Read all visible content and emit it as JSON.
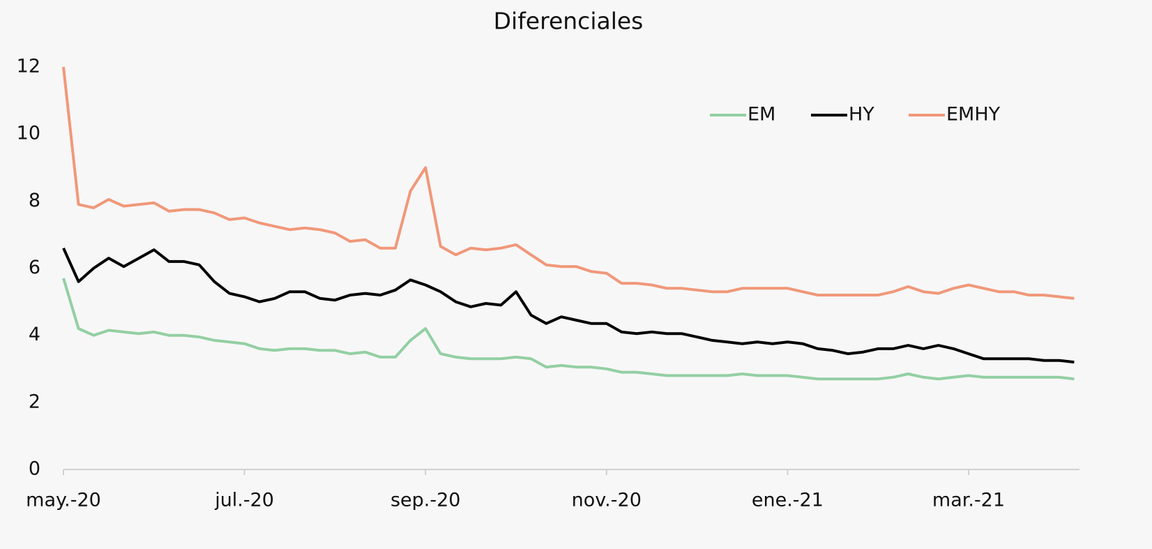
{
  "chart_data": {
    "type": "line",
    "title": "Diferenciales",
    "categories": [
      "may.-20",
      null,
      null,
      null,
      null,
      null,
      null,
      null,
      null,
      null,
      null,
      null,
      "jul.-20",
      null,
      null,
      null,
      null,
      null,
      null,
      null,
      null,
      null,
      null,
      null,
      "sep.-20",
      null,
      null,
      null,
      null,
      null,
      null,
      null,
      null,
      null,
      null,
      null,
      "nov.-20",
      null,
      null,
      null,
      null,
      null,
      null,
      null,
      null,
      null,
      null,
      null,
      "ene.-21",
      null,
      null,
      null,
      null,
      null,
      null,
      null,
      null,
      null,
      null,
      null,
      "mar.-21",
      null,
      null,
      null,
      null,
      null,
      null,
      null
    ],
    "series": [
      {
        "name": "EM",
        "color": "#93cfa3",
        "values": [
          5.7,
          4.2,
          4.0,
          4.15,
          4.1,
          4.05,
          4.1,
          4.0,
          4.0,
          3.95,
          3.85,
          3.8,
          3.75,
          3.6,
          3.55,
          3.6,
          3.6,
          3.55,
          3.55,
          3.45,
          3.5,
          3.35,
          3.35,
          3.85,
          4.2,
          3.45,
          3.35,
          3.3,
          3.3,
          3.3,
          3.35,
          3.3,
          3.05,
          3.1,
          3.05,
          3.05,
          3.0,
          2.9,
          2.9,
          2.85,
          2.8,
          2.8,
          2.8,
          2.8,
          2.8,
          2.85,
          2.8,
          2.8,
          2.8,
          2.75,
          2.7,
          2.7,
          2.7,
          2.7,
          2.7,
          2.75,
          2.85,
          2.75,
          2.7,
          2.75,
          2.8,
          2.75,
          2.75,
          2.75,
          2.75,
          2.75,
          2.75,
          2.7
        ]
      },
      {
        "name": "HY",
        "color": "#000000",
        "values": [
          6.6,
          5.6,
          6.0,
          6.3,
          6.05,
          6.3,
          6.55,
          6.2,
          6.2,
          6.1,
          5.6,
          5.25,
          5.15,
          5.0,
          5.1,
          5.3,
          5.3,
          5.1,
          5.05,
          5.2,
          5.25,
          5.2,
          5.35,
          5.65,
          5.5,
          5.3,
          5.0,
          4.85,
          4.95,
          4.9,
          5.3,
          4.6,
          4.35,
          4.55,
          4.45,
          4.35,
          4.35,
          4.1,
          4.05,
          4.1,
          4.05,
          4.05,
          3.95,
          3.85,
          3.8,
          3.75,
          3.8,
          3.75,
          3.8,
          3.75,
          3.6,
          3.55,
          3.45,
          3.5,
          3.6,
          3.6,
          3.7,
          3.6,
          3.7,
          3.6,
          3.45,
          3.3,
          3.3,
          3.3,
          3.3,
          3.25,
          3.25,
          3.2
        ]
      },
      {
        "name": "EMHY",
        "color": "#f0987a",
        "values": [
          12,
          7.9,
          7.8,
          8.05,
          7.85,
          7.9,
          7.95,
          7.7,
          7.75,
          7.75,
          7.65,
          7.45,
          7.5,
          7.35,
          7.25,
          7.15,
          7.2,
          7.15,
          7.05,
          6.8,
          6.85,
          6.6,
          6.6,
          8.3,
          9.0,
          6.65,
          6.4,
          6.6,
          6.55,
          6.6,
          6.7,
          6.4,
          6.1,
          6.05,
          6.05,
          5.9,
          5.85,
          5.55,
          5.55,
          5.5,
          5.4,
          5.4,
          5.35,
          5.3,
          5.3,
          5.4,
          5.4,
          5.4,
          5.4,
          5.3,
          5.2,
          5.2,
          5.2,
          5.2,
          5.2,
          5.3,
          5.45,
          5.3,
          5.25,
          5.4,
          5.5,
          5.4,
          5.3,
          5.3,
          5.2,
          5.2,
          5.15,
          5.1
        ]
      }
    ],
    "ylim": [
      0,
      12
    ],
    "yticks": [
      0,
      2,
      4,
      6,
      8,
      10,
      12
    ],
    "grid": false,
    "legend": "top-right"
  }
}
